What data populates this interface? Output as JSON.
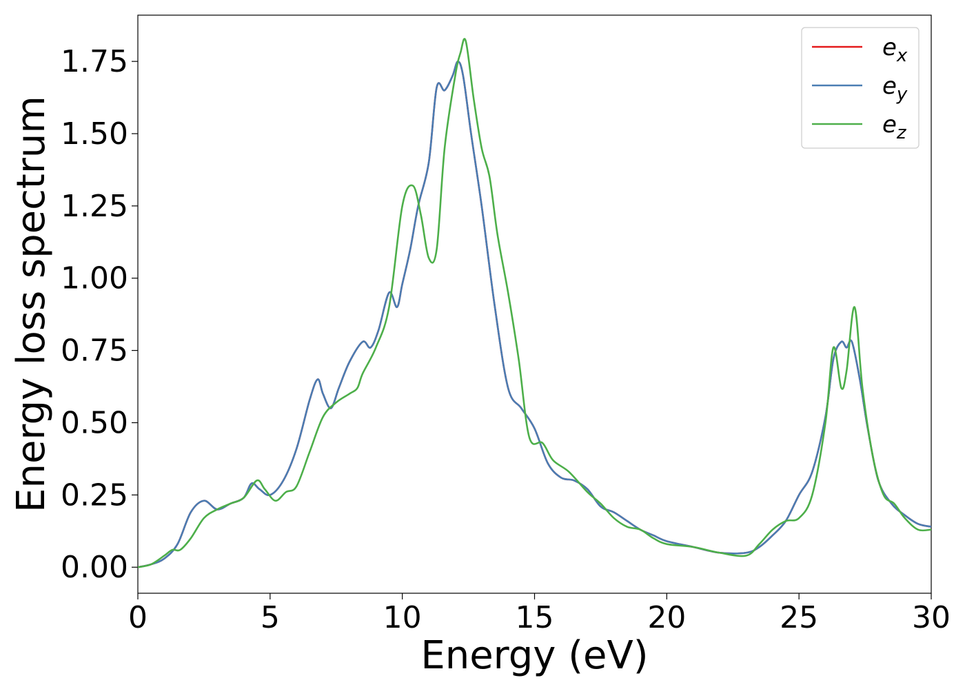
{
  "chart_data": {
    "type": "line",
    "xlabel": "Energy (eV)",
    "ylabel": "Energy loss spectrum",
    "xlim": [
      0,
      30
    ],
    "ylim": [
      -0.09,
      1.91
    ],
    "xticks": [
      0,
      5,
      10,
      15,
      20,
      25,
      30
    ],
    "xtick_labels": [
      "0",
      "5",
      "10",
      "15",
      "20",
      "25",
      "30"
    ],
    "yticks": [
      0,
      0.25,
      0.5,
      0.75,
      1.0,
      1.25,
      1.5,
      1.75
    ],
    "ytick_labels": [
      "0.00",
      "0.25",
      "0.50",
      "0.75",
      "1.00",
      "1.25",
      "1.50",
      "1.75"
    ],
    "grid": false,
    "legend_position": "top-right",
    "series": [
      {
        "name": "e_x",
        "base": "e",
        "sub": "x",
        "color": "#e41a1c",
        "x": [
          0,
          0.5,
          1.0,
          1.5,
          2.0,
          2.5,
          3.0,
          3.5,
          4.0,
          4.3,
          4.6,
          5.0,
          5.5,
          6.0,
          6.5,
          6.8,
          7.0,
          7.3,
          7.6,
          8.0,
          8.5,
          8.8,
          9.1,
          9.5,
          9.8,
          10.0,
          10.3,
          10.6,
          11.0,
          11.3,
          11.6,
          11.9,
          12.1,
          12.3,
          12.6,
          13.0,
          13.5,
          14.0,
          14.5,
          15.0,
          15.5,
          16.0,
          16.5,
          17.0,
          17.5,
          18.0,
          18.5,
          19.0,
          19.5,
          20.0,
          21.0,
          22.0,
          23.0,
          23.5,
          24.0,
          24.5,
          25.0,
          25.5,
          26.0,
          26.3,
          26.6,
          26.8,
          27.0,
          27.3,
          27.6,
          28.0,
          28.5,
          29.0,
          29.5,
          30.0
        ],
        "y": [
          0.0,
          0.01,
          0.03,
          0.08,
          0.19,
          0.23,
          0.2,
          0.22,
          0.24,
          0.29,
          0.27,
          0.25,
          0.3,
          0.41,
          0.58,
          0.65,
          0.6,
          0.55,
          0.62,
          0.71,
          0.78,
          0.76,
          0.82,
          0.95,
          0.9,
          0.98,
          1.1,
          1.25,
          1.4,
          1.66,
          1.65,
          1.7,
          1.75,
          1.7,
          1.5,
          1.25,
          0.9,
          0.62,
          0.55,
          0.48,
          0.36,
          0.31,
          0.3,
          0.27,
          0.21,
          0.19,
          0.16,
          0.13,
          0.11,
          0.09,
          0.07,
          0.05,
          0.05,
          0.07,
          0.11,
          0.16,
          0.25,
          0.33,
          0.52,
          0.72,
          0.78,
          0.76,
          0.78,
          0.65,
          0.48,
          0.3,
          0.22,
          0.18,
          0.15,
          0.14
        ]
      },
      {
        "name": "e_y",
        "base": "e",
        "sub": "y",
        "color": "#4a7db3",
        "x": [
          0,
          0.5,
          1.0,
          1.5,
          2.0,
          2.5,
          3.0,
          3.5,
          4.0,
          4.3,
          4.6,
          5.0,
          5.5,
          6.0,
          6.5,
          6.8,
          7.0,
          7.3,
          7.6,
          8.0,
          8.5,
          8.8,
          9.1,
          9.5,
          9.8,
          10.0,
          10.3,
          10.6,
          11.0,
          11.3,
          11.6,
          11.9,
          12.1,
          12.3,
          12.6,
          13.0,
          13.5,
          14.0,
          14.5,
          15.0,
          15.5,
          16.0,
          16.5,
          17.0,
          17.5,
          18.0,
          18.5,
          19.0,
          19.5,
          20.0,
          21.0,
          22.0,
          23.0,
          23.5,
          24.0,
          24.5,
          25.0,
          25.5,
          26.0,
          26.3,
          26.6,
          26.8,
          27.0,
          27.3,
          27.6,
          28.0,
          28.5,
          29.0,
          29.5,
          30.0
        ],
        "y": [
          0.0,
          0.01,
          0.03,
          0.08,
          0.19,
          0.23,
          0.2,
          0.22,
          0.24,
          0.29,
          0.27,
          0.25,
          0.3,
          0.41,
          0.58,
          0.65,
          0.6,
          0.55,
          0.62,
          0.71,
          0.78,
          0.76,
          0.82,
          0.95,
          0.9,
          0.98,
          1.1,
          1.25,
          1.4,
          1.66,
          1.65,
          1.7,
          1.75,
          1.7,
          1.5,
          1.25,
          0.9,
          0.62,
          0.55,
          0.48,
          0.36,
          0.31,
          0.3,
          0.27,
          0.21,
          0.19,
          0.16,
          0.13,
          0.11,
          0.09,
          0.07,
          0.05,
          0.05,
          0.07,
          0.11,
          0.16,
          0.25,
          0.33,
          0.52,
          0.72,
          0.78,
          0.76,
          0.78,
          0.65,
          0.48,
          0.3,
          0.22,
          0.18,
          0.15,
          0.14
        ]
      },
      {
        "name": "e_z",
        "base": "e",
        "sub": "z",
        "color": "#4daf4a",
        "x": [
          0,
          0.5,
          1.0,
          1.3,
          1.6,
          2.0,
          2.5,
          3.0,
          3.5,
          4.0,
          4.5,
          4.8,
          5.2,
          5.6,
          6.0,
          6.5,
          7.0,
          7.5,
          8.0,
          8.3,
          8.5,
          9.0,
          9.5,
          10.0,
          10.4,
          10.7,
          11.0,
          11.3,
          11.6,
          12.0,
          12.2,
          12.4,
          12.7,
          13.0,
          13.3,
          13.6,
          14.0,
          14.4,
          14.8,
          15.3,
          15.7,
          16.3,
          17.0,
          17.5,
          18.0,
          18.5,
          19.0,
          19.5,
          20.0,
          21.0,
          22.0,
          23.0,
          23.5,
          24.0,
          24.5,
          25.0,
          25.5,
          26.0,
          26.3,
          26.6,
          26.8,
          27.1,
          27.4,
          27.8,
          28.2,
          28.6,
          29.0,
          29.5,
          30.0
        ],
        "y": [
          0.0,
          0.01,
          0.04,
          0.06,
          0.06,
          0.1,
          0.17,
          0.2,
          0.22,
          0.24,
          0.3,
          0.27,
          0.23,
          0.26,
          0.28,
          0.4,
          0.52,
          0.57,
          0.6,
          0.62,
          0.67,
          0.76,
          0.9,
          1.25,
          1.32,
          1.22,
          1.07,
          1.1,
          1.45,
          1.7,
          1.78,
          1.82,
          1.62,
          1.45,
          1.35,
          1.15,
          0.95,
          0.72,
          0.45,
          0.43,
          0.37,
          0.33,
          0.26,
          0.22,
          0.17,
          0.14,
          0.13,
          0.1,
          0.08,
          0.07,
          0.05,
          0.04,
          0.08,
          0.13,
          0.16,
          0.17,
          0.25,
          0.5,
          0.76,
          0.62,
          0.68,
          0.9,
          0.62,
          0.38,
          0.25,
          0.22,
          0.17,
          0.13,
          0.13
        ]
      }
    ]
  }
}
